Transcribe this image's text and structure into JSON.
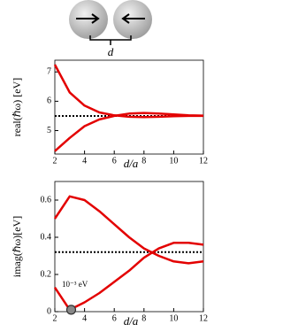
{
  "diagram": {
    "label": "d"
  },
  "chart_data": [
    {
      "type": "line",
      "ylabel": "real(ℏω) [eV]",
      "xlabel": "d/a",
      "x": [
        2,
        3,
        4,
        5,
        6,
        7,
        8,
        9,
        10,
        11,
        12
      ],
      "series": [
        {
          "color": "#e30000",
          "values": [
            7.25,
            6.3,
            5.85,
            5.62,
            5.52,
            5.47,
            5.46,
            5.47,
            5.49,
            5.5,
            5.5
          ]
        },
        {
          "color": "#e30000",
          "values": [
            4.3,
            4.75,
            5.15,
            5.38,
            5.5,
            5.58,
            5.6,
            5.58,
            5.55,
            5.52,
            5.51
          ]
        }
      ],
      "reference": 5.5,
      "xlim": [
        2,
        12
      ],
      "xticks": [
        2,
        4,
        6,
        8,
        10,
        12
      ],
      "ylim": [
        4.2,
        7.4
      ],
      "yticks": [
        5,
        6,
        7
      ]
    },
    {
      "type": "line",
      "ylabel": "imag(ℏω)[eV]",
      "xlabel": "d/a",
      "x": [
        2,
        3,
        4,
        5,
        6,
        7,
        8,
        9,
        10,
        11,
        12
      ],
      "series": [
        {
          "color": "#e30000",
          "values": [
            0.5,
            0.62,
            0.6,
            0.54,
            0.47,
            0.4,
            0.34,
            0.3,
            0.27,
            0.26,
            0.27
          ]
        },
        {
          "color": "#e30000",
          "values": [
            0.13,
            0.01,
            0.05,
            0.1,
            0.16,
            0.22,
            0.29,
            0.34,
            0.37,
            0.37,
            0.36
          ]
        }
      ],
      "reference": 0.32,
      "annotation": {
        "text": "10⁻³ eV",
        "x": 3.1,
        "y": 0.01
      },
      "xlim": [
        2,
        12
      ],
      "xticks": [
        2,
        4,
        6,
        8,
        10,
        12
      ],
      "ylim": [
        0,
        0.7
      ],
      "yticks": [
        0,
        0.2,
        0.4,
        0.6
      ]
    }
  ]
}
